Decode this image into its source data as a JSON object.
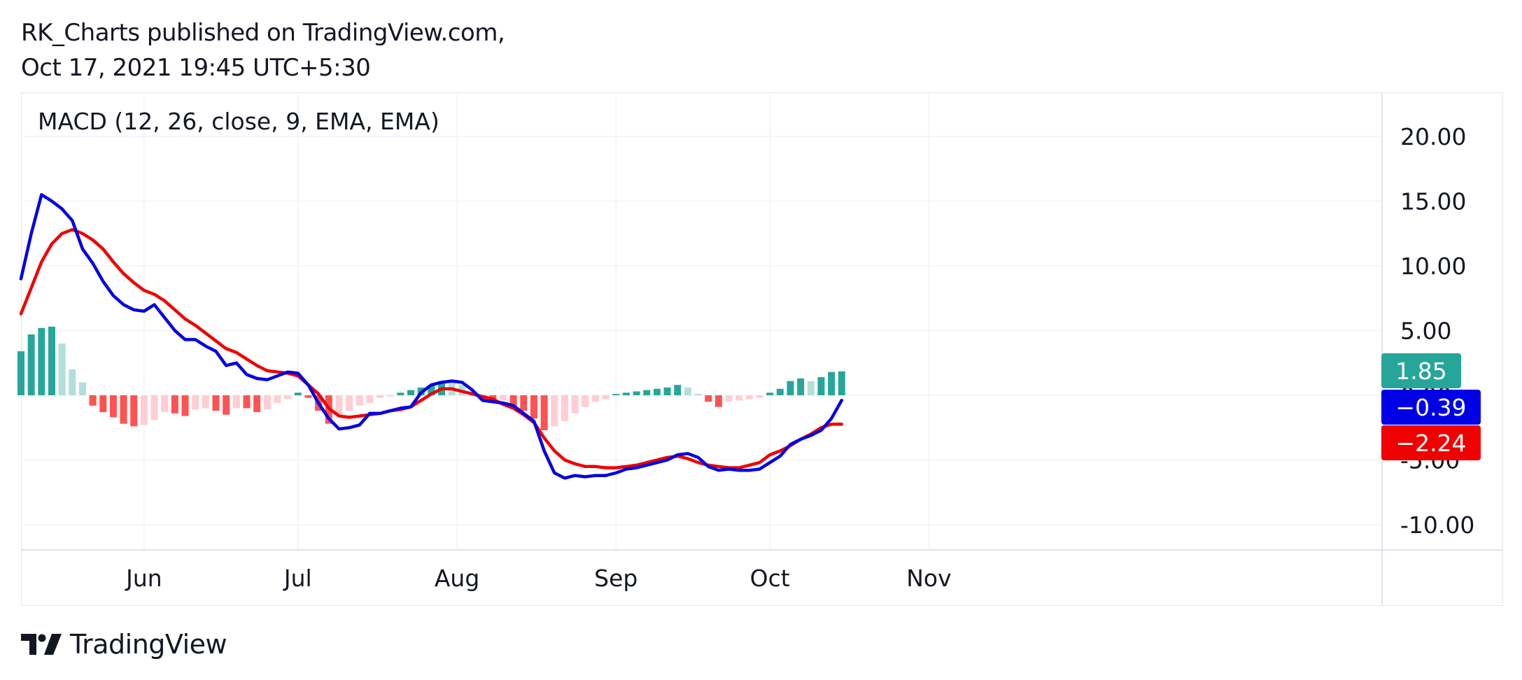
{
  "header": {
    "line1": "RK_Charts published on TradingView.com,",
    "line2": "Oct 17, 2021 19:45 UTC+5:30"
  },
  "footer": {
    "brand": "TradingView",
    "logo_icon": "tradingview-logo-icon"
  },
  "colors": {
    "macd": "#0000e6",
    "signal": "#f00000",
    "hist_pos_grow": "#26a69a",
    "hist_pos_fall": "#b2dfdb",
    "hist_neg_grow": "#ffcdd2",
    "hist_neg_fall": "#ff5252",
    "grid": "#f0f3fa"
  },
  "chart_data": {
    "type": "line",
    "title": "MACD (12, 26, close, 9, EMA, EMA)",
    "x_axis": {
      "ticks": [
        "Jun",
        "Jul",
        "Aug",
        "Sep",
        "Oct",
        "Nov"
      ],
      "range": [
        "2021-05-08",
        "2021-11-10"
      ]
    },
    "y_axis": {
      "ticks": [
        "20.00",
        "15.00",
        "10.00",
        "5.00",
        "0.00",
        "-5.00",
        "-10.00"
      ],
      "range": [
        -11,
        22
      ]
    },
    "grid": true,
    "last_values": {
      "histogram": "1.85",
      "macd": "−0.39",
      "signal": "−2.24"
    },
    "series": [
      {
        "key": "macd",
        "x": [
          "2021-05-08",
          "2021-05-10",
          "2021-05-12",
          "2021-05-14",
          "2021-05-16",
          "2021-05-18",
          "2021-05-20",
          "2021-05-22",
          "2021-05-24",
          "2021-05-26",
          "2021-05-28",
          "2021-05-30",
          "2021-06-01",
          "2021-06-03",
          "2021-06-05",
          "2021-06-07",
          "2021-06-09",
          "2021-06-11",
          "2021-06-13",
          "2021-06-15",
          "2021-06-17",
          "2021-06-19",
          "2021-06-21",
          "2021-06-23",
          "2021-06-25",
          "2021-06-27",
          "2021-06-29",
          "2021-07-01",
          "2021-07-03",
          "2021-07-05",
          "2021-07-07",
          "2021-07-09",
          "2021-07-11",
          "2021-07-13",
          "2021-07-15",
          "2021-07-17",
          "2021-07-19",
          "2021-07-21",
          "2021-07-23",
          "2021-07-25",
          "2021-07-27",
          "2021-07-29",
          "2021-07-31",
          "2021-08-02",
          "2021-08-04",
          "2021-08-06",
          "2021-08-08",
          "2021-08-10",
          "2021-08-12",
          "2021-08-14",
          "2021-08-16",
          "2021-08-18",
          "2021-08-20",
          "2021-08-22",
          "2021-08-24",
          "2021-08-26",
          "2021-08-28",
          "2021-08-30",
          "2021-09-01",
          "2021-09-03",
          "2021-09-05",
          "2021-09-07",
          "2021-09-09",
          "2021-09-11",
          "2021-09-13",
          "2021-09-15",
          "2021-09-17",
          "2021-09-19",
          "2021-09-21",
          "2021-09-23",
          "2021-09-25",
          "2021-09-27",
          "2021-09-29",
          "2021-10-01",
          "2021-10-03",
          "2021-10-05",
          "2021-10-07",
          "2021-10-09",
          "2021-10-11",
          "2021-10-13",
          "2021-10-15"
        ],
        "values": [
          9.0,
          12.5,
          15.5,
          15.0,
          14.4,
          13.5,
          11.3,
          10.2,
          8.8,
          7.7,
          7.0,
          6.6,
          6.5,
          7.0,
          6.0,
          5.0,
          4.3,
          4.3,
          3.8,
          3.4,
          2.3,
          2.5,
          1.6,
          1.3,
          1.2,
          1.5,
          1.8,
          1.7,
          0.8,
          -0.6,
          -1.8,
          -2.6,
          -2.5,
          -2.3,
          -1.4,
          -1.4,
          -1.2,
          -1.0,
          -0.9,
          0.2,
          0.8,
          1.0,
          1.1,
          1.0,
          0.4,
          -0.4,
          -0.5,
          -0.6,
          -0.8,
          -1.4,
          -2.0,
          -4.3,
          -6.0,
          -6.4,
          -6.2,
          -6.3,
          -6.2,
          -6.2,
          -6.0,
          -5.7,
          -5.6,
          -5.4,
          -5.2,
          -5.0,
          -4.6,
          -4.5,
          -4.8,
          -5.5,
          -5.8,
          -5.7,
          -5.8,
          -5.8,
          -5.7,
          -5.2,
          -4.7,
          -3.8,
          -3.4,
          -3.1,
          -2.7,
          -1.8,
          -0.39
        ]
      },
      {
        "key": "signal",
        "x": [
          "2021-05-08",
          "2021-05-10",
          "2021-05-12",
          "2021-05-14",
          "2021-05-16",
          "2021-05-18",
          "2021-05-20",
          "2021-05-22",
          "2021-05-24",
          "2021-05-26",
          "2021-05-28",
          "2021-05-30",
          "2021-06-01",
          "2021-06-03",
          "2021-06-05",
          "2021-06-07",
          "2021-06-09",
          "2021-06-11",
          "2021-06-13",
          "2021-06-15",
          "2021-06-17",
          "2021-06-19",
          "2021-06-21",
          "2021-06-23",
          "2021-06-25",
          "2021-06-27",
          "2021-06-29",
          "2021-07-01",
          "2021-07-03",
          "2021-07-05",
          "2021-07-07",
          "2021-07-09",
          "2021-07-11",
          "2021-07-13",
          "2021-07-15",
          "2021-07-17",
          "2021-07-19",
          "2021-07-21",
          "2021-07-23",
          "2021-07-25",
          "2021-07-27",
          "2021-07-29",
          "2021-07-31",
          "2021-08-02",
          "2021-08-04",
          "2021-08-06",
          "2021-08-08",
          "2021-08-10",
          "2021-08-12",
          "2021-08-14",
          "2021-08-16",
          "2021-08-18",
          "2021-08-20",
          "2021-08-22",
          "2021-08-24",
          "2021-08-26",
          "2021-08-28",
          "2021-08-30",
          "2021-09-01",
          "2021-09-03",
          "2021-09-05",
          "2021-09-07",
          "2021-09-09",
          "2021-09-11",
          "2021-09-13",
          "2021-09-15",
          "2021-09-17",
          "2021-09-19",
          "2021-09-21",
          "2021-09-23",
          "2021-09-25",
          "2021-09-27",
          "2021-09-29",
          "2021-10-01",
          "2021-10-03",
          "2021-10-05",
          "2021-10-07",
          "2021-10-09",
          "2021-10-11",
          "2021-10-13",
          "2021-10-15"
        ],
        "values": [
          6.3,
          8.3,
          10.3,
          11.7,
          12.5,
          12.8,
          12.5,
          12.0,
          11.3,
          10.3,
          9.4,
          8.7,
          8.1,
          7.8,
          7.3,
          6.6,
          5.9,
          5.4,
          4.8,
          4.2,
          3.6,
          3.3,
          2.8,
          2.3,
          1.9,
          1.8,
          1.7,
          1.5,
          0.8,
          0.1,
          -1.0,
          -1.6,
          -1.7,
          -1.6,
          -1.5,
          -1.4,
          -1.2,
          -1.1,
          -0.9,
          -0.4,
          0.1,
          0.5,
          0.5,
          0.3,
          0.1,
          -0.1,
          -0.3,
          -0.7,
          -1.0,
          -1.5,
          -2.1,
          -3.3,
          -4.3,
          -5.0,
          -5.3,
          -5.5,
          -5.5,
          -5.6,
          -5.6,
          -5.5,
          -5.4,
          -5.2,
          -5.0,
          -4.8,
          -4.7,
          -4.9,
          -5.2,
          -5.4,
          -5.5,
          -5.6,
          -5.6,
          -5.4,
          -5.2,
          -4.6,
          -4.3,
          -3.9,
          -3.4,
          -3.0,
          -2.5,
          -2.24,
          -2.24
        ]
      },
      {
        "key": "histogram",
        "x": [
          "2021-05-08",
          "2021-05-10",
          "2021-05-12",
          "2021-05-14",
          "2021-05-16",
          "2021-05-18",
          "2021-05-20",
          "2021-05-22",
          "2021-05-24",
          "2021-05-26",
          "2021-05-28",
          "2021-05-30",
          "2021-06-01",
          "2021-06-03",
          "2021-06-05",
          "2021-06-07",
          "2021-06-09",
          "2021-06-11",
          "2021-06-13",
          "2021-06-15",
          "2021-06-17",
          "2021-06-19",
          "2021-06-21",
          "2021-06-23",
          "2021-06-25",
          "2021-06-27",
          "2021-06-29",
          "2021-07-01",
          "2021-07-03",
          "2021-07-05",
          "2021-07-07",
          "2021-07-09",
          "2021-07-11",
          "2021-07-13",
          "2021-07-15",
          "2021-07-17",
          "2021-07-19",
          "2021-07-21",
          "2021-07-23",
          "2021-07-25",
          "2021-07-27",
          "2021-07-29",
          "2021-07-31",
          "2021-08-02",
          "2021-08-04",
          "2021-08-06",
          "2021-08-08",
          "2021-08-10",
          "2021-08-12",
          "2021-08-14",
          "2021-08-16",
          "2021-08-18",
          "2021-08-20",
          "2021-08-22",
          "2021-08-24",
          "2021-08-26",
          "2021-08-28",
          "2021-08-30",
          "2021-09-01",
          "2021-09-03",
          "2021-09-05",
          "2021-09-07",
          "2021-09-09",
          "2021-09-11",
          "2021-09-13",
          "2021-09-15",
          "2021-09-17",
          "2021-09-19",
          "2021-09-21",
          "2021-09-23",
          "2021-09-25",
          "2021-09-27",
          "2021-09-29",
          "2021-10-01",
          "2021-10-03",
          "2021-10-05",
          "2021-10-07",
          "2021-10-09",
          "2021-10-11",
          "2021-10-13",
          "2021-10-15"
        ],
        "values": [
          3.4,
          4.7,
          5.2,
          5.3,
          4.0,
          2.0,
          1.0,
          -0.8,
          -1.3,
          -1.7,
          -2.2,
          -2.4,
          -2.3,
          -1.9,
          -1.3,
          -1.4,
          -1.6,
          -1.1,
          -1.0,
          -1.2,
          -1.5,
          -1.0,
          -1.0,
          -1.3,
          -1.1,
          -0.6,
          -0.3,
          0.2,
          -0.2,
          -1.2,
          -2.2,
          -1.5,
          -1.2,
          -0.8,
          -0.6,
          -0.2,
          -0.1,
          0.2,
          0.4,
          0.6,
          0.8,
          1.1,
          1.0,
          0.8,
          0.3,
          -0.3,
          -0.5,
          -0.4,
          -0.9,
          -1.2,
          -1.8,
          -2.7,
          -2.4,
          -2.0,
          -1.4,
          -0.9,
          -0.5,
          -0.3,
          0.1,
          0.2,
          0.3,
          0.4,
          0.5,
          0.6,
          0.8,
          0.6,
          0.1,
          -0.5,
          -0.9,
          -0.5,
          -0.4,
          -0.3,
          -0.2,
          0.2,
          0.5,
          1.1,
          1.3,
          1.1,
          1.4,
          1.8,
          1.85
        ]
      }
    ]
  }
}
